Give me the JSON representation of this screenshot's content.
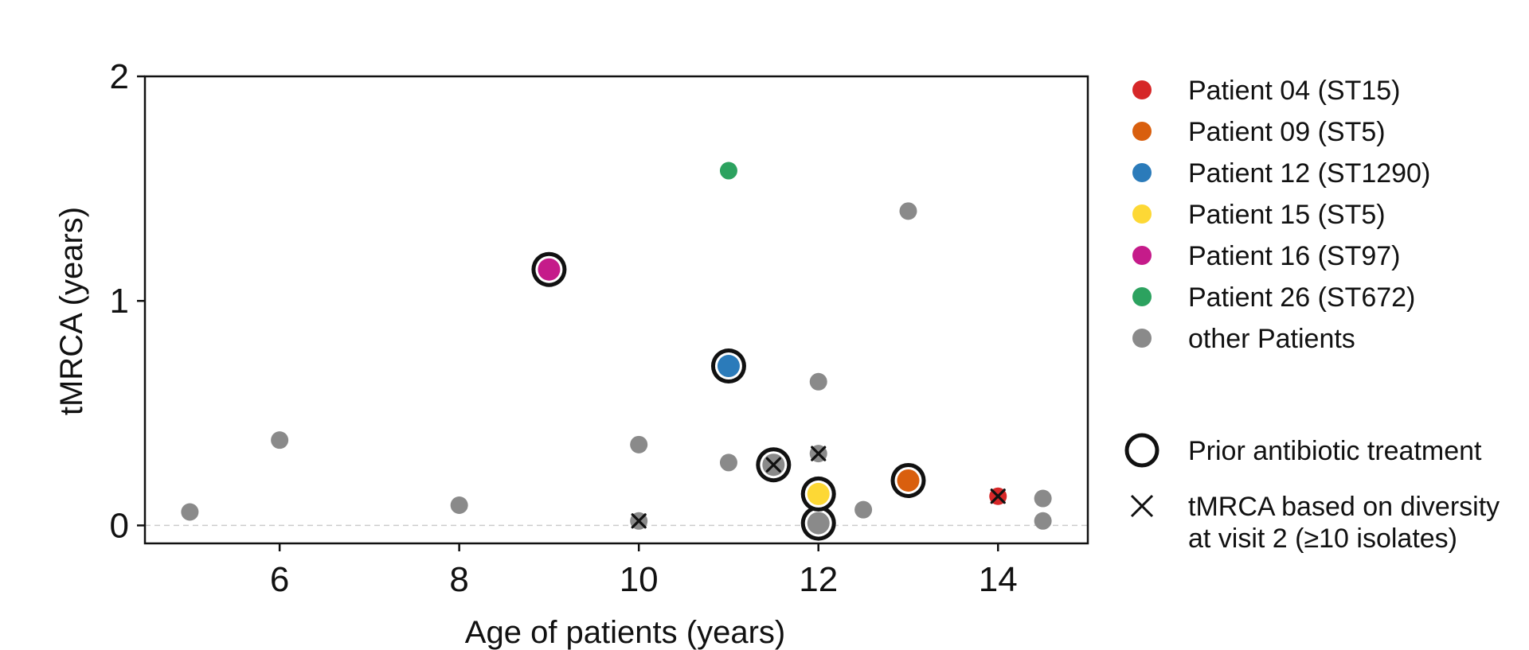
{
  "chart_data": {
    "type": "scatter",
    "xlabel": "Age of patients (years)",
    "ylabel": "tMRCA (years)",
    "xlim": [
      4.5,
      15
    ],
    "ylim": [
      -0.08,
      2
    ],
    "xticks": [
      "6",
      "8",
      "10",
      "12",
      "14"
    ],
    "yticks": [
      "0",
      "1",
      "2"
    ],
    "reference_line": {
      "y": 0,
      "style": "dashed",
      "color": "#cccccc"
    },
    "grid": false,
    "legend_position": "right-outside",
    "series": [
      {
        "name": "Patient 04 (ST15)",
        "color": "#d62728",
        "points": [
          {
            "x": 14,
            "y": 0.13,
            "prior_antibiotic": false,
            "diversity_based": true
          }
        ]
      },
      {
        "name": "Patient 09 (ST5)",
        "color": "#d95f0e",
        "points": [
          {
            "x": 13,
            "y": 0.2,
            "prior_antibiotic": true,
            "diversity_based": false
          }
        ]
      },
      {
        "name": "Patient 12 (ST1290)",
        "color": "#2b7bba",
        "points": [
          {
            "x": 11,
            "y": 0.71,
            "prior_antibiotic": true,
            "diversity_based": false
          }
        ]
      },
      {
        "name": "Patient 15 (ST5)",
        "color": "#fdd835",
        "points": [
          {
            "x": 12,
            "y": 0.14,
            "prior_antibiotic": true,
            "diversity_based": false
          }
        ]
      },
      {
        "name": "Patient 16 (ST97)",
        "color": "#c51b8a",
        "points": [
          {
            "x": 9,
            "y": 1.14,
            "prior_antibiotic": true,
            "diversity_based": false
          }
        ]
      },
      {
        "name": "Patient 26 (ST672)",
        "color": "#2ca25f",
        "points": [
          {
            "x": 11,
            "y": 1.58,
            "prior_antibiotic": false,
            "diversity_based": false
          }
        ]
      },
      {
        "name": "other Patients",
        "color": "#8a8a8a",
        "points": [
          {
            "x": 5,
            "y": 0.06,
            "prior_antibiotic": false,
            "diversity_based": false
          },
          {
            "x": 6,
            "y": 0.38,
            "prior_antibiotic": false,
            "diversity_based": false
          },
          {
            "x": 8,
            "y": 0.09,
            "prior_antibiotic": false,
            "diversity_based": false
          },
          {
            "x": 10,
            "y": 0.36,
            "prior_antibiotic": false,
            "diversity_based": false
          },
          {
            "x": 10,
            "y": 0.02,
            "prior_antibiotic": false,
            "diversity_based": true
          },
          {
            "x": 11,
            "y": 0.28,
            "prior_antibiotic": false,
            "diversity_based": false
          },
          {
            "x": 11.5,
            "y": 0.27,
            "prior_antibiotic": true,
            "diversity_based": true
          },
          {
            "x": 12,
            "y": 0.64,
            "prior_antibiotic": false,
            "diversity_based": false
          },
          {
            "x": 12,
            "y": 0.32,
            "prior_antibiotic": false,
            "diversity_based": true
          },
          {
            "x": 12,
            "y": 0.01,
            "prior_antibiotic": true,
            "diversity_based": false
          },
          {
            "x": 12.5,
            "y": 0.07,
            "prior_antibiotic": false,
            "diversity_based": false
          },
          {
            "x": 13,
            "y": 1.4,
            "prior_antibiotic": false,
            "diversity_based": false
          },
          {
            "x": 14.5,
            "y": 0.12,
            "prior_antibiotic": false,
            "diversity_based": false
          },
          {
            "x": 14.5,
            "y": 0.02,
            "prior_antibiotic": false,
            "diversity_based": false
          }
        ]
      }
    ],
    "legend": {
      "series_entries": [
        "Patient 04 (ST15)",
        "Patient 09 (ST5)",
        "Patient 12 (ST1290)",
        "Patient 15 (ST5)",
        "Patient 16 (ST97)",
        "Patient 26 (ST672)",
        "other Patients"
      ],
      "marker_entries": [
        {
          "symbol": "ring",
          "label": "Prior antibiotic treatment"
        },
        {
          "symbol": "cross",
          "label_lines": [
            "tMRCA based on diversity",
            "at visit 2 (≥10 isolates)"
          ]
        }
      ]
    }
  }
}
